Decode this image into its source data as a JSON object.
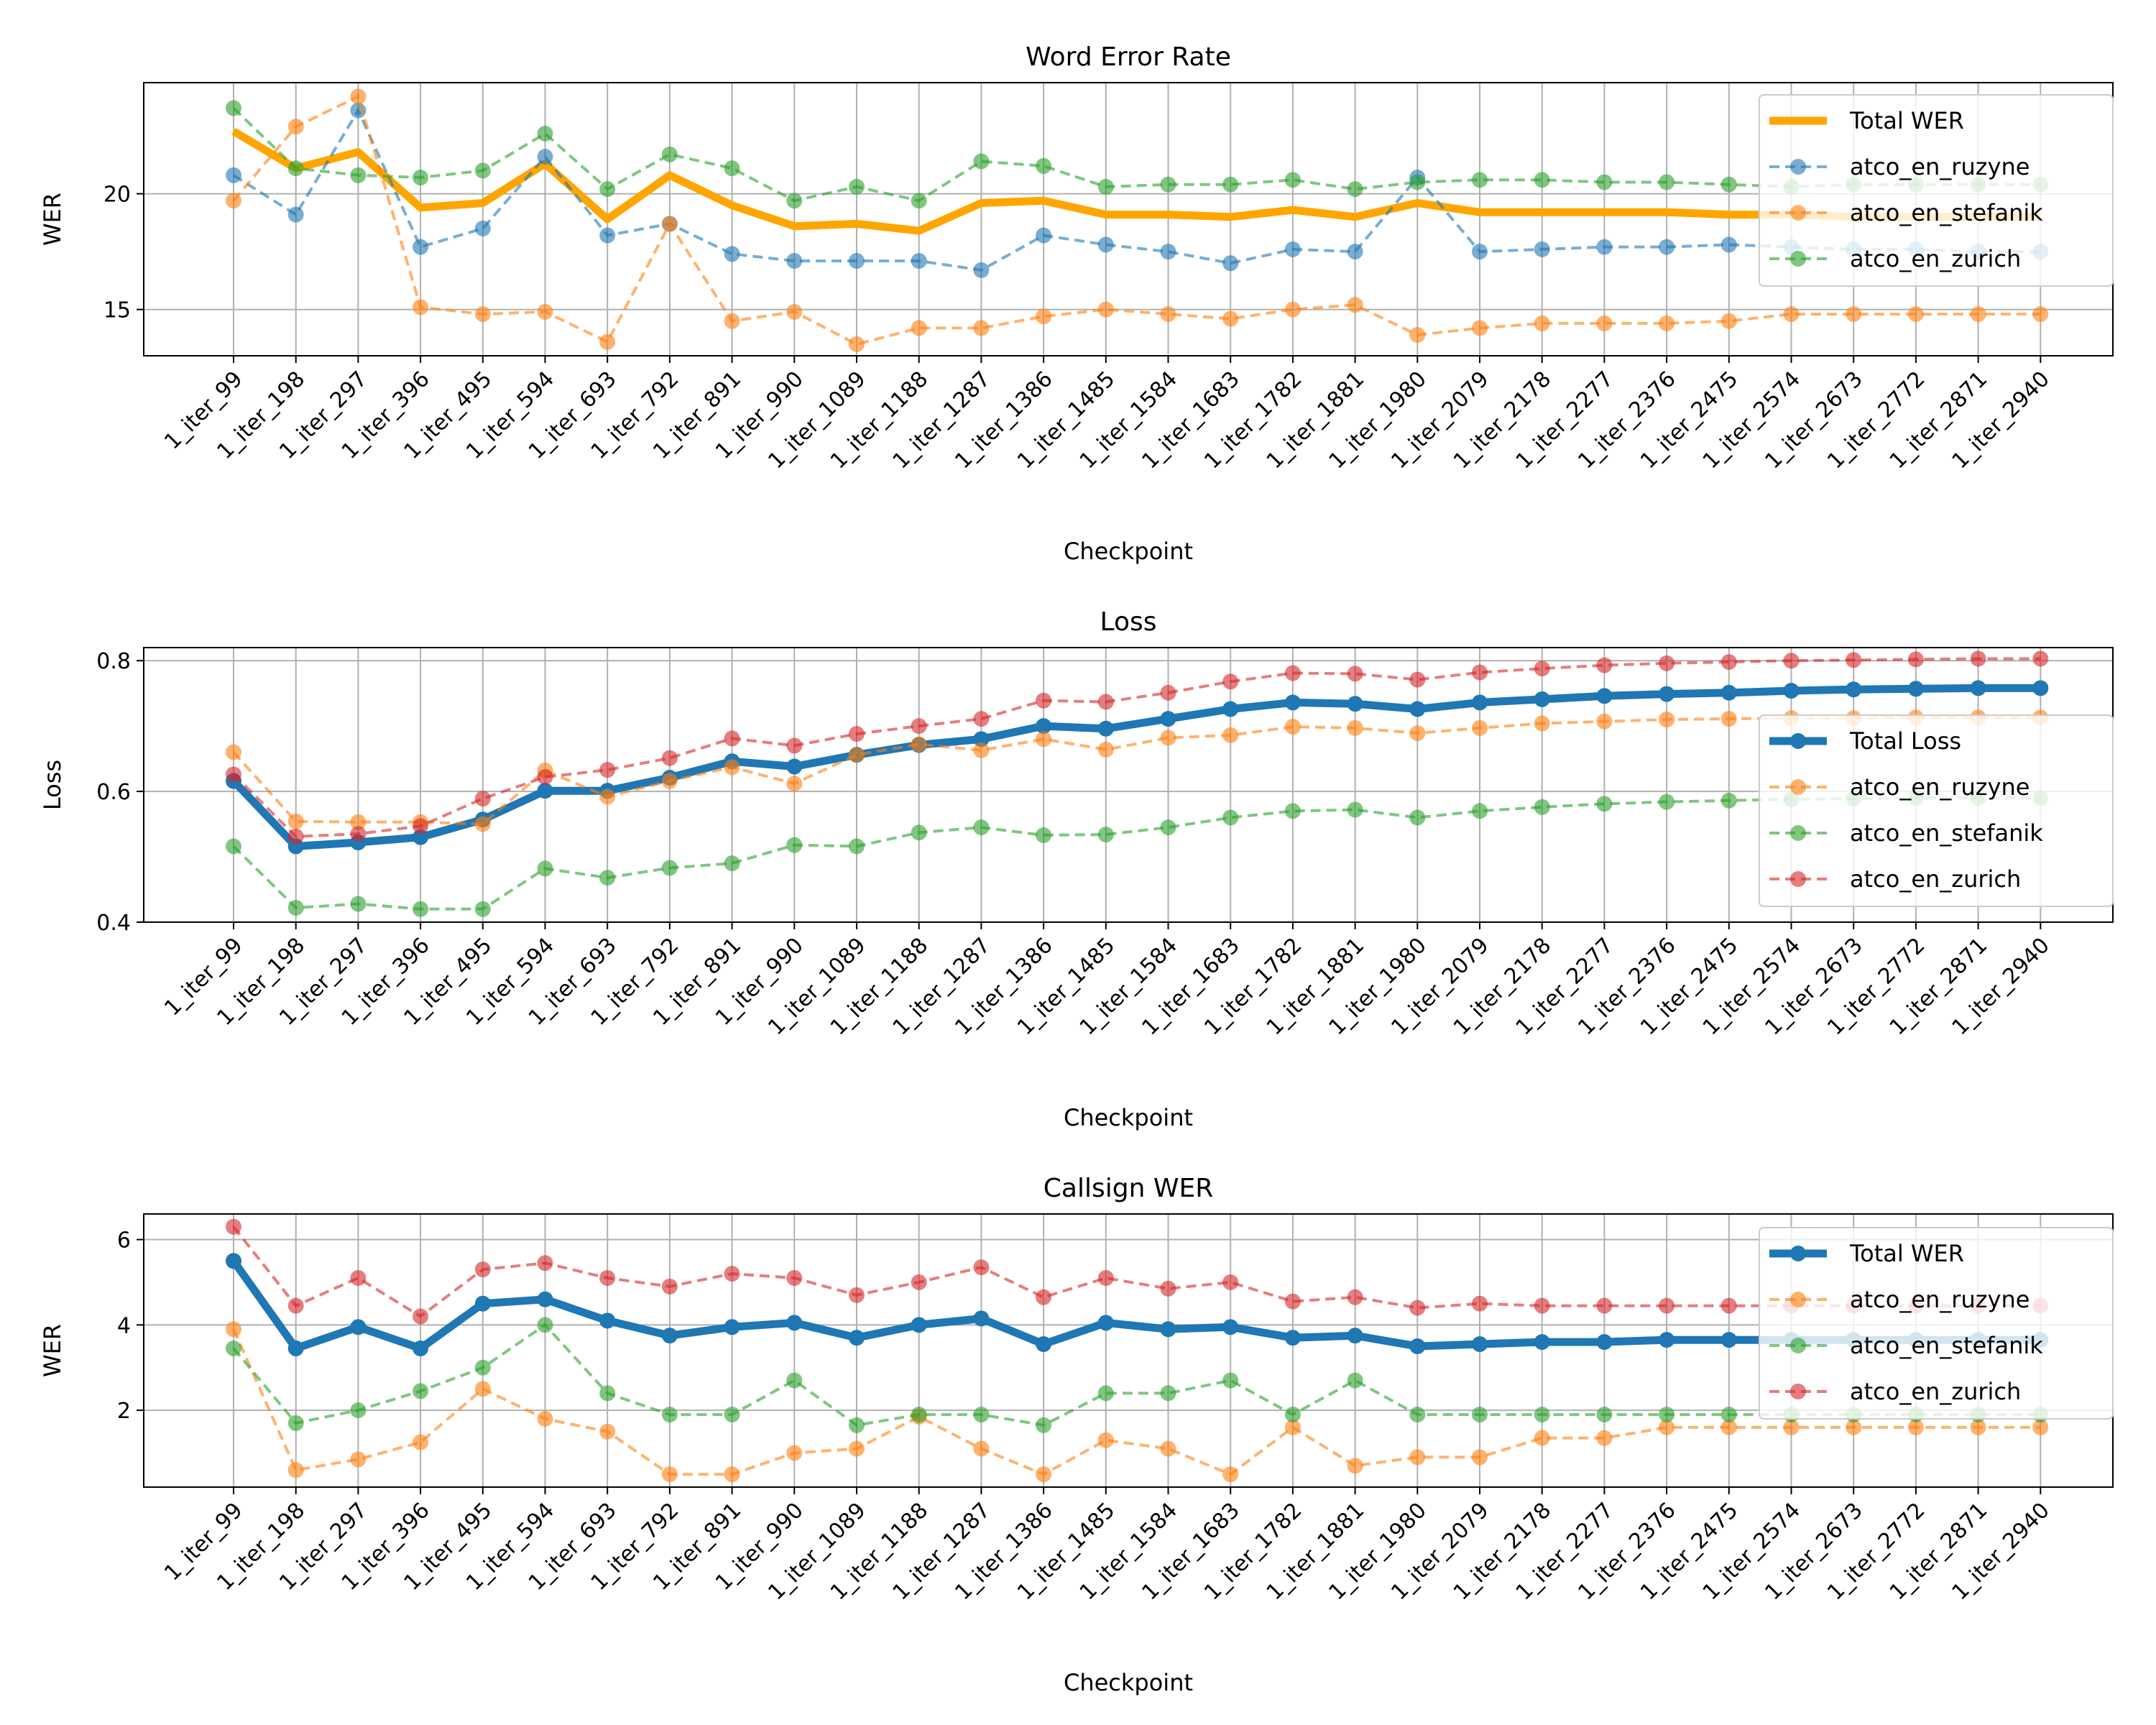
{
  "checkpoints": [
    "1_iter_99",
    "1_iter_198",
    "1_iter_297",
    "1_iter_396",
    "1_iter_495",
    "1_iter_594",
    "1_iter_693",
    "1_iter_792",
    "1_iter_891",
    "1_iter_990",
    "1_iter_1089",
    "1_iter_1188",
    "1_iter_1287",
    "1_iter_1386",
    "1_iter_1485",
    "1_iter_1584",
    "1_iter_1683",
    "1_iter_1782",
    "1_iter_1881",
    "1_iter_1980",
    "1_iter_2079",
    "1_iter_2178",
    "1_iter_2277",
    "1_iter_2376",
    "1_iter_2475",
    "1_iter_2574",
    "1_iter_2673",
    "1_iter_2772",
    "1_iter_2871",
    "1_iter_2940"
  ],
  "chart_data": [
    {
      "type": "line",
      "title": "Word Error Rate",
      "xlabel": "Checkpoint",
      "ylabel": "WER",
      "ylim": [
        13,
        24.8
      ],
      "yticks": [
        15,
        20
      ],
      "grid": true,
      "legend_position": "top-right",
      "series": [
        {
          "name": "Total WER",
          "color": "#ffa500",
          "style": "thick",
          "values": [
            22.7,
            21.1,
            21.8,
            19.4,
            19.6,
            21.3,
            18.9,
            20.8,
            19.5,
            18.6,
            18.7,
            18.4,
            19.6,
            19.7,
            19.1,
            19.1,
            19.0,
            19.3,
            19.0,
            19.6,
            19.2,
            19.2,
            19.2,
            19.2,
            19.1,
            19.1,
            19.0,
            19.0,
            19.0,
            19.0
          ]
        },
        {
          "name": "atco_en_ruzyne",
          "color": "#1f77b4",
          "style": "dashed",
          "values": [
            20.8,
            19.1,
            23.6,
            17.7,
            18.5,
            21.6,
            18.2,
            18.7,
            17.4,
            17.1,
            17.1,
            17.1,
            16.7,
            18.2,
            17.8,
            17.5,
            17.0,
            17.6,
            17.5,
            20.7,
            17.5,
            17.6,
            17.7,
            17.7,
            17.8,
            17.7,
            17.6,
            17.6,
            17.5,
            17.5
          ]
        },
        {
          "name": "atco_en_stefanik",
          "color": "#ff7f0e",
          "style": "dashed",
          "values": [
            19.7,
            22.9,
            24.2,
            15.1,
            14.8,
            14.9,
            13.6,
            18.7,
            14.5,
            14.9,
            13.5,
            14.2,
            14.2,
            14.7,
            15.0,
            14.8,
            14.6,
            15.0,
            15.2,
            13.9,
            14.2,
            14.4,
            14.4,
            14.4,
            14.5,
            14.8,
            14.8,
            14.8,
            14.8,
            14.8
          ]
        },
        {
          "name": "atco_en_zurich",
          "color": "#2ca02c",
          "style": "dashed",
          "values": [
            23.7,
            21.1,
            20.8,
            20.7,
            21.0,
            22.6,
            20.2,
            21.7,
            21.1,
            19.7,
            20.3,
            19.7,
            21.4,
            21.2,
            20.3,
            20.4,
            20.4,
            20.6,
            20.2,
            20.5,
            20.6,
            20.6,
            20.5,
            20.5,
            20.4,
            20.3,
            20.4,
            20.4,
            20.4,
            20.4
          ]
        }
      ]
    },
    {
      "type": "line",
      "title": "Loss",
      "xlabel": "Checkpoint",
      "ylabel": "Loss",
      "ylim": [
        0.4,
        0.82
      ],
      "yticks": [
        0.4,
        0.6,
        0.8
      ],
      "grid": true,
      "legend_position": "center-right",
      "series": [
        {
          "name": "Total Loss",
          "color": "#1f77b4",
          "style": "thick",
          "values": [
            0.616,
            0.516,
            0.522,
            0.53,
            0.557,
            0.601,
            0.601,
            0.621,
            0.646,
            0.638,
            0.656,
            0.671,
            0.68,
            0.7,
            0.696,
            0.711,
            0.726,
            0.736,
            0.734,
            0.726,
            0.736,
            0.741,
            0.746,
            0.749,
            0.751,
            0.754,
            0.756,
            0.757,
            0.758,
            0.758
          ]
        },
        {
          "name": "atco_en_ruzyne",
          "color": "#ff7f0e",
          "style": "dashed",
          "values": [
            0.66,
            0.554,
            0.553,
            0.553,
            0.55,
            0.632,
            0.592,
            0.616,
            0.637,
            0.612,
            0.656,
            0.672,
            0.663,
            0.68,
            0.664,
            0.682,
            0.686,
            0.699,
            0.697,
            0.689,
            0.697,
            0.704,
            0.707,
            0.71,
            0.711,
            0.712,
            0.712,
            0.713,
            0.713,
            0.713
          ]
        },
        {
          "name": "atco_en_stefanik",
          "color": "#2ca02c",
          "style": "dashed",
          "values": [
            0.516,
            0.422,
            0.428,
            0.42,
            0.42,
            0.482,
            0.468,
            0.483,
            0.49,
            0.518,
            0.516,
            0.537,
            0.545,
            0.533,
            0.534,
            0.545,
            0.56,
            0.57,
            0.572,
            0.56,
            0.57,
            0.576,
            0.581,
            0.584,
            0.586,
            0.588,
            0.589,
            0.59,
            0.59,
            0.59
          ]
        },
        {
          "name": "atco_en_zurich",
          "color": "#d62728",
          "style": "dashed",
          "values": [
            0.626,
            0.531,
            0.535,
            0.547,
            0.589,
            0.622,
            0.633,
            0.651,
            0.681,
            0.67,
            0.688,
            0.7,
            0.711,
            0.739,
            0.737,
            0.751,
            0.768,
            0.781,
            0.78,
            0.771,
            0.782,
            0.788,
            0.793,
            0.796,
            0.798,
            0.8,
            0.801,
            0.802,
            0.803,
            0.803
          ]
        }
      ]
    },
    {
      "type": "line",
      "title": "Callsign WER",
      "xlabel": "Checkpoint",
      "ylabel": "WER",
      "ylim": [
        0.2,
        6.6
      ],
      "yticks": [
        2,
        4,
        6
      ],
      "grid": true,
      "legend_position": "top-right",
      "series": [
        {
          "name": "Total WER",
          "color": "#1f77b4",
          "style": "thick",
          "values": [
            5.5,
            3.45,
            3.95,
            3.45,
            4.5,
            4.6,
            4.1,
            3.75,
            3.95,
            4.05,
            3.7,
            4.0,
            4.15,
            3.55,
            4.05,
            3.9,
            3.95,
            3.7,
            3.75,
            3.5,
            3.55,
            3.6,
            3.6,
            3.65,
            3.65,
            3.65,
            3.65,
            3.65,
            3.65,
            3.65
          ]
        },
        {
          "name": "atco_en_ruzyne",
          "color": "#ff7f0e",
          "style": "dashed",
          "values": [
            3.9,
            0.6,
            0.85,
            1.25,
            2.5,
            1.8,
            1.5,
            0.5,
            0.5,
            1.0,
            1.1,
            1.85,
            1.1,
            0.5,
            1.3,
            1.1,
            0.5,
            1.6,
            0.7,
            0.9,
            0.9,
            1.35,
            1.35,
            1.6,
            1.6,
            1.6,
            1.6,
            1.6,
            1.6,
            1.6
          ]
        },
        {
          "name": "atco_en_stefanik",
          "color": "#2ca02c",
          "style": "dashed",
          "values": [
            3.45,
            1.7,
            2.0,
            2.45,
            3.0,
            4.0,
            2.4,
            1.9,
            1.9,
            2.7,
            1.65,
            1.9,
            1.9,
            1.65,
            2.4,
            2.4,
            2.7,
            1.9,
            2.7,
            1.9,
            1.9,
            1.9,
            1.9,
            1.9,
            1.9,
            1.9,
            1.9,
            1.9,
            1.9,
            1.9
          ]
        },
        {
          "name": "atco_en_zurich",
          "color": "#d62728",
          "style": "dashed",
          "values": [
            6.3,
            4.45,
            5.1,
            4.2,
            5.3,
            5.45,
            5.1,
            4.9,
            5.2,
            5.1,
            4.7,
            5.0,
            5.35,
            4.65,
            5.1,
            4.85,
            5.0,
            4.55,
            4.65,
            4.4,
            4.5,
            4.45,
            4.45,
            4.45,
            4.45,
            4.45,
            4.45,
            4.45,
            4.45,
            4.45
          ]
        }
      ]
    }
  ]
}
